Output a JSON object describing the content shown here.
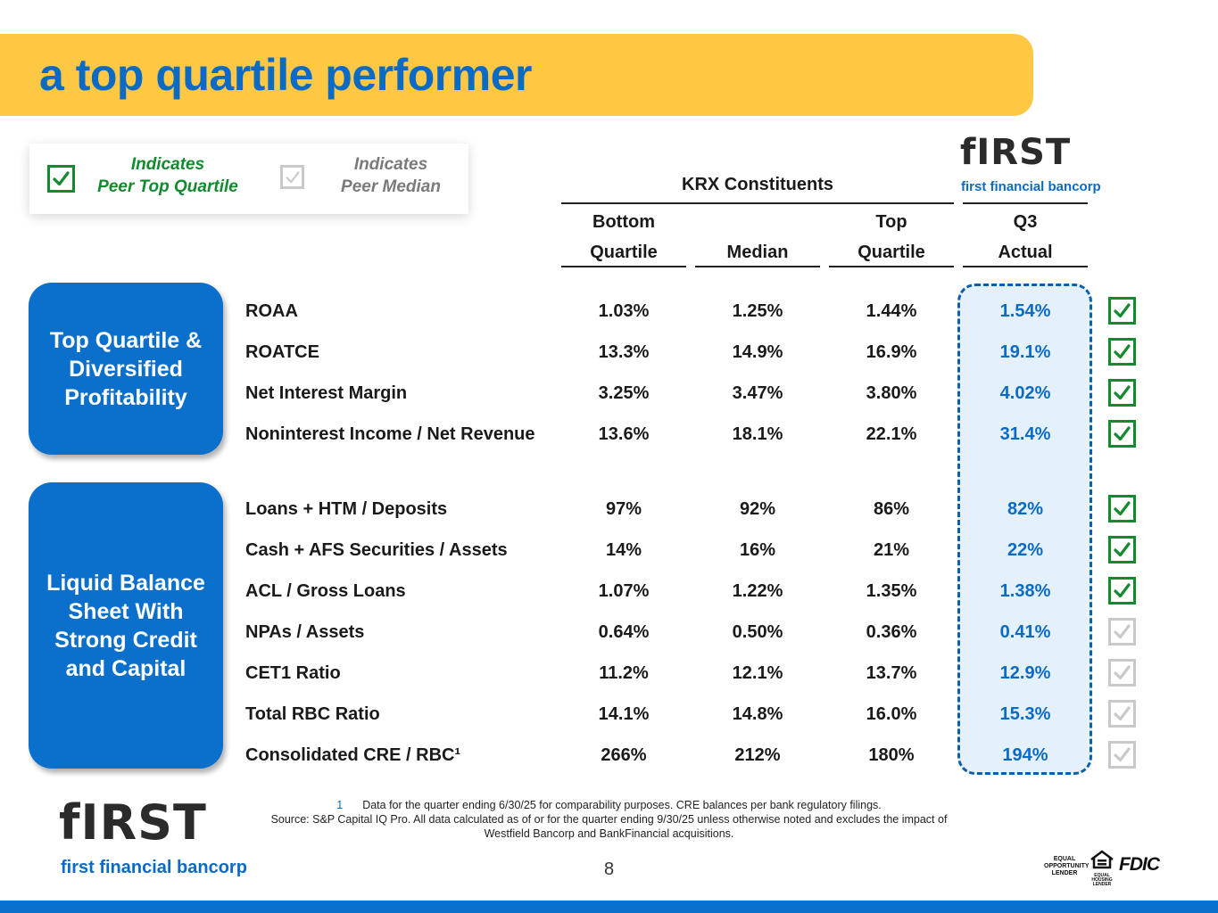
{
  "header": {
    "title": "a top quartile performer"
  },
  "legend": {
    "top_quartile_label_1": "Indicates",
    "top_quartile_label_2": "Peer Top Quartile",
    "median_label_1": "Indicates",
    "median_label_2": "Peer Median",
    "top_quartile_color": "#128a2e",
    "median_color": "#c9c9c9"
  },
  "logo": {
    "wordmark": "fIRST",
    "subtitle": "first financial bancorp"
  },
  "table": {
    "group_header": "KRX Constituents",
    "columns": [
      {
        "line1": "Bottom",
        "line2": "Quartile"
      },
      {
        "line1": "",
        "line2": "Median"
      },
      {
        "line1": "Top",
        "line2": "Quartile"
      },
      {
        "line1": "Q3",
        "line2": "Actual"
      }
    ],
    "sections": [
      {
        "label": "Top Quartile & Diversified Profitability"
      },
      {
        "label": "Liquid Balance Sheet With Strong Credit and Capital"
      }
    ],
    "rows": [
      {
        "metric": "ROAA",
        "bottom": "1.03%",
        "median": "1.25%",
        "top": "1.44%",
        "actual": "1.54%",
        "status": "top-quartile"
      },
      {
        "metric": "ROATCE",
        "bottom": "13.3%",
        "median": "14.9%",
        "top": "16.9%",
        "actual": "19.1%",
        "status": "top-quartile"
      },
      {
        "metric": "Net Interest Margin",
        "bottom": "3.25%",
        "median": "3.47%",
        "top": "3.80%",
        "actual": "4.02%",
        "status": "top-quartile"
      },
      {
        "metric": "Noninterest Income / Net Revenue",
        "bottom": "13.6%",
        "median": "18.1%",
        "top": "22.1%",
        "actual": "31.4%",
        "status": "top-quartile"
      },
      {
        "metric": "Loans + HTM / Deposits",
        "bottom": "97%",
        "median": "92%",
        "top": "86%",
        "actual": "82%",
        "status": "top-quartile"
      },
      {
        "metric": "Cash + AFS Securities / Assets",
        "bottom": "14%",
        "median": "16%",
        "top": "21%",
        "actual": "22%",
        "status": "top-quartile"
      },
      {
        "metric": "ACL / Gross Loans",
        "bottom": "1.07%",
        "median": "1.22%",
        "top": "1.35%",
        "actual": "1.38%",
        "status": "top-quartile"
      },
      {
        "metric": "NPAs / Assets",
        "bottom": "0.64%",
        "median": "0.50%",
        "top": "0.36%",
        "actual": "0.41%",
        "status": "median"
      },
      {
        "metric": "CET1 Ratio",
        "bottom": "11.2%",
        "median": "12.1%",
        "top": "13.7%",
        "actual": "12.9%",
        "status": "median"
      },
      {
        "metric": "Total RBC Ratio",
        "bottom": "14.1%",
        "median": "14.8%",
        "top": "16.0%",
        "actual": "15.3%",
        "status": "median"
      },
      {
        "metric": "Consolidated CRE / RBC¹",
        "bottom": "266%",
        "median": "212%",
        "top": "180%",
        "actual": "194%",
        "status": "median"
      }
    ]
  },
  "footnote": {
    "marker": "1",
    "line1": "Data for the quarter ending 6/30/25 for comparability purposes. CRE balances per bank regulatory filings.",
    "line2": "Source: S&P Capital IQ Pro. All data calculated as of or for the quarter ending 9/30/25 unless otherwise noted and excludes the impact of Westfield Bancorp and BankFinancial acquisitions."
  },
  "page_number": "8",
  "badges": {
    "equal_opportunity": "EQUAL OPPORTUNITY LENDER",
    "equal_housing": "EQUAL HOUSING LENDER",
    "fdic": "FDIC"
  }
}
